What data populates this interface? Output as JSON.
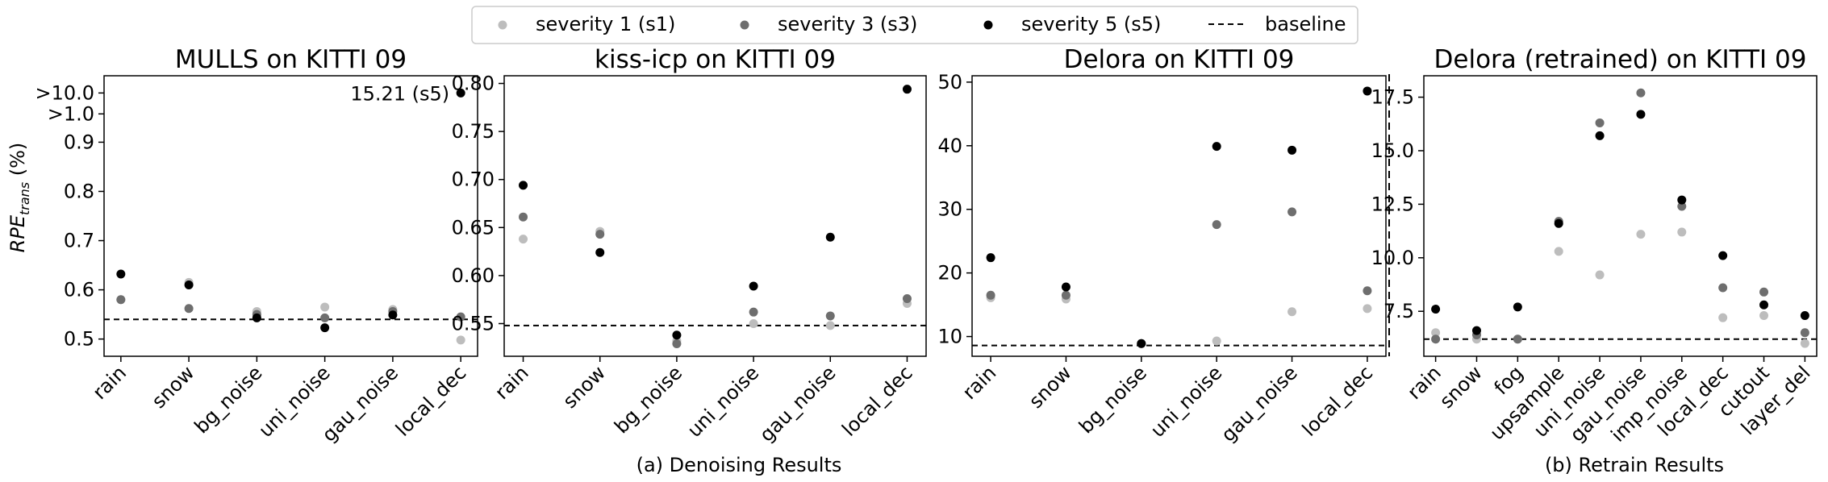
{
  "legend": {
    "entries": [
      {
        "label": "severity 1 (s1)",
        "color": "#bdbdbd",
        "kind": "marker"
      },
      {
        "label": "severity 3 (s3)",
        "color": "#6e6e6e",
        "kind": "marker"
      },
      {
        "label": "severity 5 (s5)",
        "color": "#000000",
        "kind": "marker"
      },
      {
        "label": "baseline",
        "color": "#000000",
        "kind": "dashed"
      }
    ]
  },
  "figure": {
    "ylabel_main": "RPE",
    "ylabel_sub": "trans",
    "ylabel_unit": " (%)",
    "caption_a": "(a) Denoising Results",
    "caption_b": "(b) Retrain Results"
  },
  "chart_data": [
    {
      "type": "scatter",
      "title": "MULLS on KITTI 09",
      "categories": [
        "rain",
        "snow",
        "bg_noise",
        "uni_noise",
        "gau_noise",
        "local_dec"
      ],
      "ylim": [
        0.465,
        1.035
      ],
      "yticks": [
        0.5,
        0.6,
        0.7,
        0.8,
        0.9,
        1.0,
        1.1
      ],
      "ytick_labels": [
        "0.5",
        "0.6",
        "0.7",
        "0.8",
        "0.9",
        ">1.0",
        ">10.0"
      ],
      "ytick_positions": [
        0.5,
        0.6,
        0.7,
        0.8,
        0.9,
        0.9575,
        1.0
      ],
      "baseline": 0.54,
      "series": [
        {
          "name": "severity 1 (s1)",
          "color": "#bdbdbd",
          "values": [
            0.58,
            0.615,
            0.556,
            0.565,
            0.56,
            0.498
          ]
        },
        {
          "name": "severity 3 (s3)",
          "color": "#6e6e6e",
          "values": [
            0.58,
            0.562,
            0.55,
            0.543,
            0.556,
            0.545
          ]
        },
        {
          "name": "severity 5 (s5)",
          "color": "#000000",
          "values": [
            0.632,
            0.61,
            0.543,
            0.523,
            0.549,
            1.0
          ]
        }
      ],
      "annotation": {
        "text": "15.21 (s5)"
      }
    },
    {
      "type": "scatter",
      "title": "kiss-icp on KITTI 09",
      "categories": [
        "rain",
        "snow",
        "bg_noise",
        "uni_noise",
        "gau_noise",
        "local_dec"
      ],
      "ylim": [
        0.516,
        0.808
      ],
      "yticks": [
        0.55,
        0.6,
        0.65,
        0.7,
        0.75,
        0.8
      ],
      "ytick_labels": [
        "0.55",
        "0.60",
        "0.65",
        "0.70",
        "0.75",
        "0.80"
      ],
      "baseline": 0.548,
      "series": [
        {
          "name": "severity 1 (s1)",
          "color": "#bdbdbd",
          "values": [
            0.638,
            0.646,
            0.532,
            0.55,
            0.548,
            0.571
          ]
        },
        {
          "name": "severity 3 (s3)",
          "color": "#6e6e6e",
          "values": [
            0.661,
            0.643,
            0.529,
            0.562,
            0.558,
            0.576
          ]
        },
        {
          "name": "severity 5 (s5)",
          "color": "#000000",
          "values": [
            0.694,
            0.624,
            0.538,
            0.589,
            0.64,
            0.794
          ]
        }
      ]
    },
    {
      "type": "scatter",
      "title": "Delora on KITTI 09",
      "categories": [
        "rain",
        "snow",
        "bg_noise",
        "uni_noise",
        "gau_noise",
        "local_dec"
      ],
      "ylim": [
        6.9,
        51.0
      ],
      "yticks": [
        10,
        20,
        30,
        40,
        50
      ],
      "ytick_labels": [
        "10",
        "20",
        "30",
        "40",
        "50"
      ],
      "baseline": 8.6,
      "series": [
        {
          "name": "severity 1 (s1)",
          "color": "#bdbdbd",
          "values": [
            16.1,
            15.9,
            8.9,
            9.3,
            13.9,
            14.4
          ]
        },
        {
          "name": "severity 3 (s3)",
          "color": "#6e6e6e",
          "values": [
            16.5,
            16.5,
            8.9,
            27.6,
            29.6,
            17.2
          ]
        },
        {
          "name": "severity 5 (s5)",
          "color": "#000000",
          "values": [
            22.4,
            17.8,
            8.9,
            39.9,
            39.3,
            48.6
          ]
        }
      ]
    },
    {
      "type": "scatter",
      "title": "Delora (retrained) on KITTI 09",
      "categories": [
        "rain",
        "snow",
        "fog",
        "upsample",
        "uni_noise",
        "gau_noise",
        "imp_noise",
        "local_dec",
        "cutout",
        "layer_del"
      ],
      "ylim": [
        5.4,
        18.5
      ],
      "yticks": [
        7.5,
        10.0,
        12.5,
        15.0,
        17.5
      ],
      "ytick_labels": [
        "7.5",
        "10.0",
        "12.5",
        "15.0",
        "17.5"
      ],
      "baseline": 6.2,
      "series": [
        {
          "name": "severity 1 (s1)",
          "color": "#bdbdbd",
          "values": [
            6.5,
            6.2,
            6.2,
            10.3,
            9.2,
            11.1,
            11.2,
            7.2,
            7.3,
            6.0
          ]
        },
        {
          "name": "severity 3 (s3)",
          "color": "#6e6e6e",
          "values": [
            6.2,
            6.4,
            6.2,
            11.7,
            16.3,
            17.7,
            12.4,
            8.6,
            8.4,
            6.5
          ]
        },
        {
          "name": "severity 5 (s5)",
          "color": "#000000",
          "values": [
            7.6,
            6.6,
            7.7,
            11.6,
            15.7,
            16.7,
            12.7,
            10.1,
            7.8,
            7.3
          ]
        }
      ]
    }
  ]
}
